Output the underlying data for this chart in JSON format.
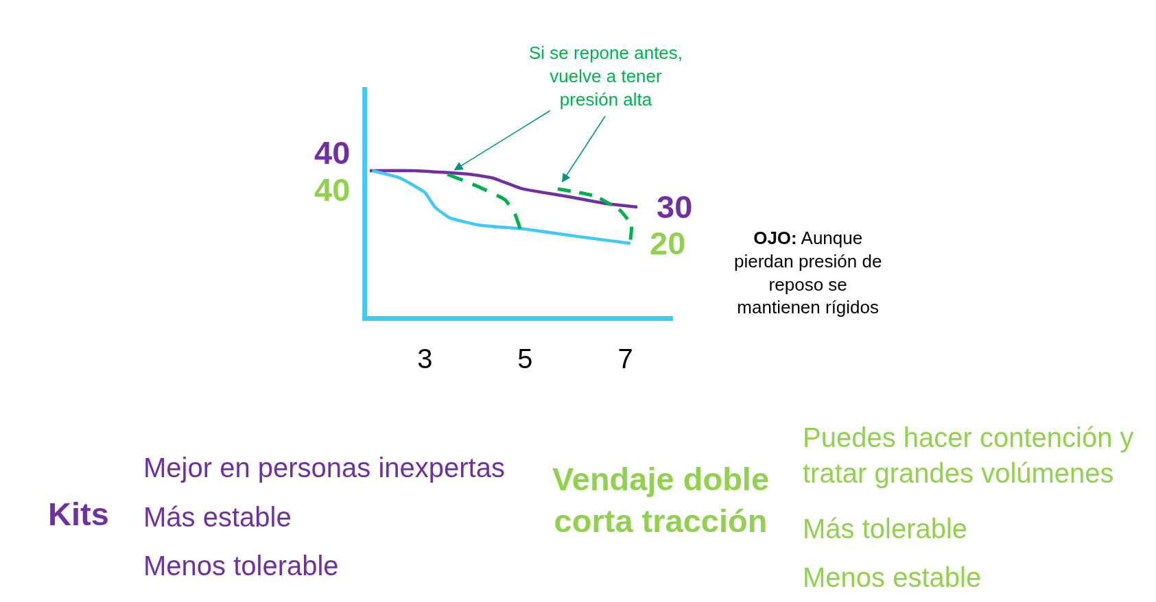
{
  "chart_data": {
    "type": "line",
    "xlim": [
      1.75,
      7.95
    ],
    "ylim": [
      0,
      63
    ],
    "xticks": [
      3,
      5,
      7
    ],
    "tick_labels": "x",
    "line_style": "solid",
    "series": [
      {
        "color": "#7030a0",
        "x": [
          1.9,
          2.8,
          3.9,
          4.35,
          4.55,
          4.95,
          5.8,
          6.6,
          7.24
        ],
        "values": [
          40,
          40,
          39,
          38,
          37,
          35,
          33,
          31,
          30
        ],
        "value_labels": [
          "40",
          null,
          null,
          null,
          null,
          null,
          null,
          null,
          "30"
        ]
      },
      {
        "color": "#41c8f4",
        "x": [
          1.95,
          2.5,
          3.0,
          3.2,
          3.5,
          4.1,
          4.95,
          6.0,
          7.1
        ],
        "values": [
          40,
          38,
          34,
          30,
          27,
          25,
          24,
          22,
          20
        ],
        "value_labels": [
          "40",
          null,
          null,
          null,
          null,
          null,
          null,
          null,
          "20"
        ]
      },
      {
        "color": "#00b050",
        "line_style": "dashed",
        "x": [
          3.45,
          4.0,
          4.6,
          4.8,
          4.9
        ],
        "values": [
          39,
          36,
          32,
          28,
          24
        ]
      },
      {
        "color": "#00b050",
        "line_style": "dashed",
        "x": [
          5.65,
          6.4,
          6.9,
          7.12,
          7.1
        ],
        "values": [
          35,
          33,
          29,
          25,
          21
        ]
      }
    ],
    "ref_lines": [
      {
        "axis": "x",
        "value": 1.8,
        "color": "#41c8f4"
      }
    ],
    "annotations": [
      "Si se repone antes,\nvuelve a tener\npresión alta",
      "OJO: Aunque\npierdan presión de\nreposo se\nmantienen rígidos",
      "Kits",
      "Mejor en personas inexpertas",
      "Más estable",
      "Menos tolerable",
      "Vendaje doble\ncorta tracción",
      "Puedes hacer contención y\ntratar grandes volúmenes",
      "Más tolerable",
      "Menos estable"
    ]
  }
}
